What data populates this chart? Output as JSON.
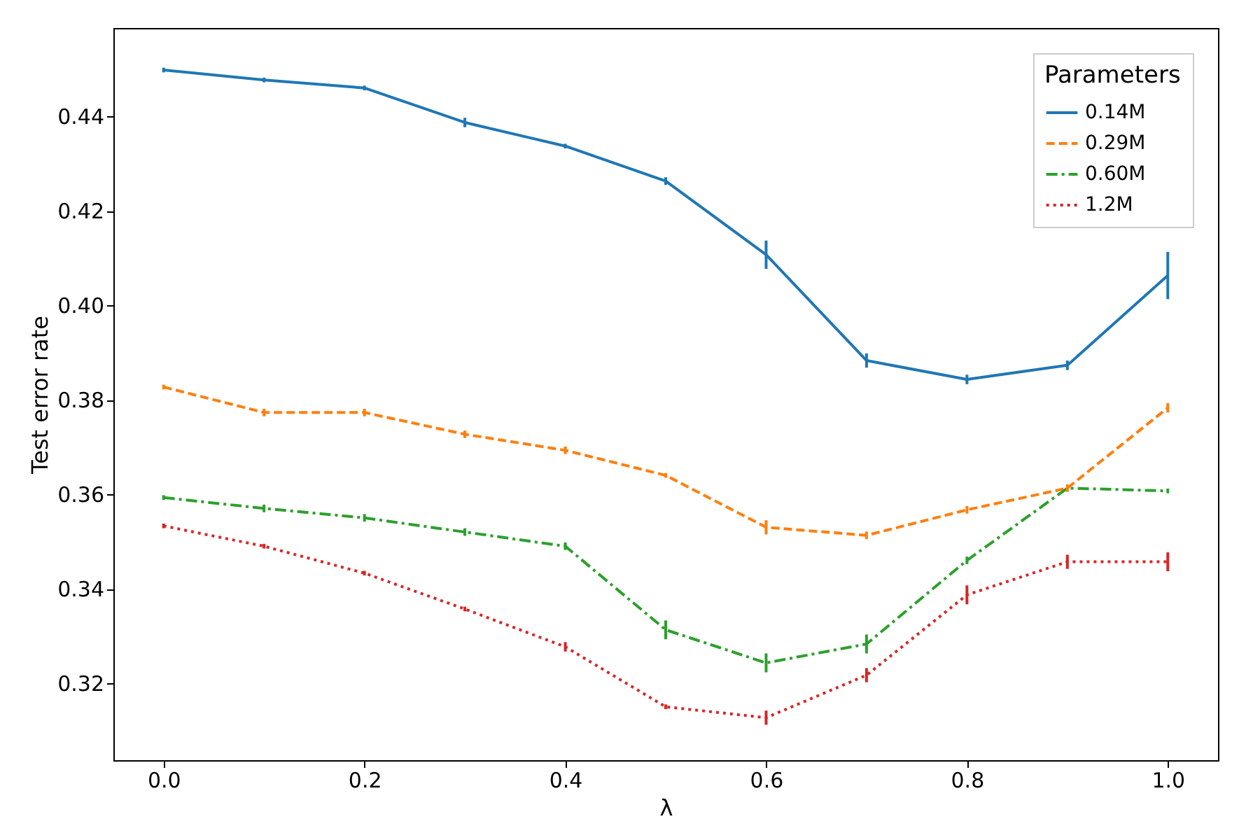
{
  "chart_data": {
    "type": "line",
    "xlabel": "λ",
    "ylabel": "Test error rate",
    "legend_title": "Parameters",
    "legend": "top right",
    "grid": false,
    "marker": "none",
    "x": [
      0.0,
      0.1,
      0.2,
      0.3,
      0.4,
      0.5,
      0.6,
      0.7,
      0.8,
      0.9,
      1.0
    ],
    "xlim": [
      -0.05,
      1.05
    ],
    "xticks": [
      {
        "value": 0,
        "label": "0.0"
      },
      0.2,
      0.4,
      0.6,
      0.8,
      {
        "value": 1,
        "label": "1.0"
      }
    ],
    "ylim": [
      0.3037,
      0.4587
    ],
    "yticks": [
      0.32,
      0.34,
      0.36,
      0.38,
      {
        "value": 0.4,
        "label": "0.40"
      },
      0.42,
      0.44
    ],
    "series": [
      {
        "name": "0.14M",
        "color": "#1f77b4",
        "line_style": "solid",
        "values": [
          0.4498,
          0.4477,
          0.446,
          0.4387,
          0.4337,
          0.4263,
          0.4107,
          0.3883,
          0.3843,
          0.3873,
          0.4063
        ],
        "errors": [
          0.0005,
          0.0005,
          0.0005,
          0.001,
          0.0005,
          0.0008,
          0.003,
          0.0015,
          0.001,
          0.001,
          0.005
        ]
      },
      {
        "name": "0.29M",
        "color": "#ff7f0e",
        "line_style": "dashed",
        "values": [
          0.3827,
          0.3773,
          0.3773,
          0.3727,
          0.3693,
          0.364,
          0.353,
          0.3513,
          0.3567,
          0.3613,
          0.3783
        ],
        "errors": [
          0.0005,
          0.0008,
          0.0008,
          0.0008,
          0.0008,
          0.0005,
          0.0015,
          0.0008,
          0.0008,
          0.0008,
          0.001
        ]
      },
      {
        "name": "0.60M",
        "color": "#2ca02c",
        "line_style": "dashdot",
        "values": [
          0.3593,
          0.357,
          0.355,
          0.352,
          0.349,
          0.3313,
          0.3243,
          0.3283,
          0.346,
          0.3613,
          0.3607
        ],
        "errors": [
          0.0005,
          0.0008,
          0.0008,
          0.0008,
          0.0008,
          0.002,
          0.002,
          0.002,
          0.0008,
          null,
          0.0005
        ]
      },
      {
        "name": "1.2M",
        "color": "#d62728",
        "line_style": "dotted",
        "values": [
          0.3533,
          0.349,
          0.3433,
          0.3357,
          0.3277,
          0.315,
          0.3127,
          0.3217,
          0.3387,
          0.3457,
          0.3457
        ],
        "errors": [
          0.0005,
          0.0005,
          0.0005,
          0.0005,
          0.001,
          0.0005,
          0.0015,
          0.0015,
          0.002,
          0.0015,
          0.002
        ]
      }
    ]
  }
}
